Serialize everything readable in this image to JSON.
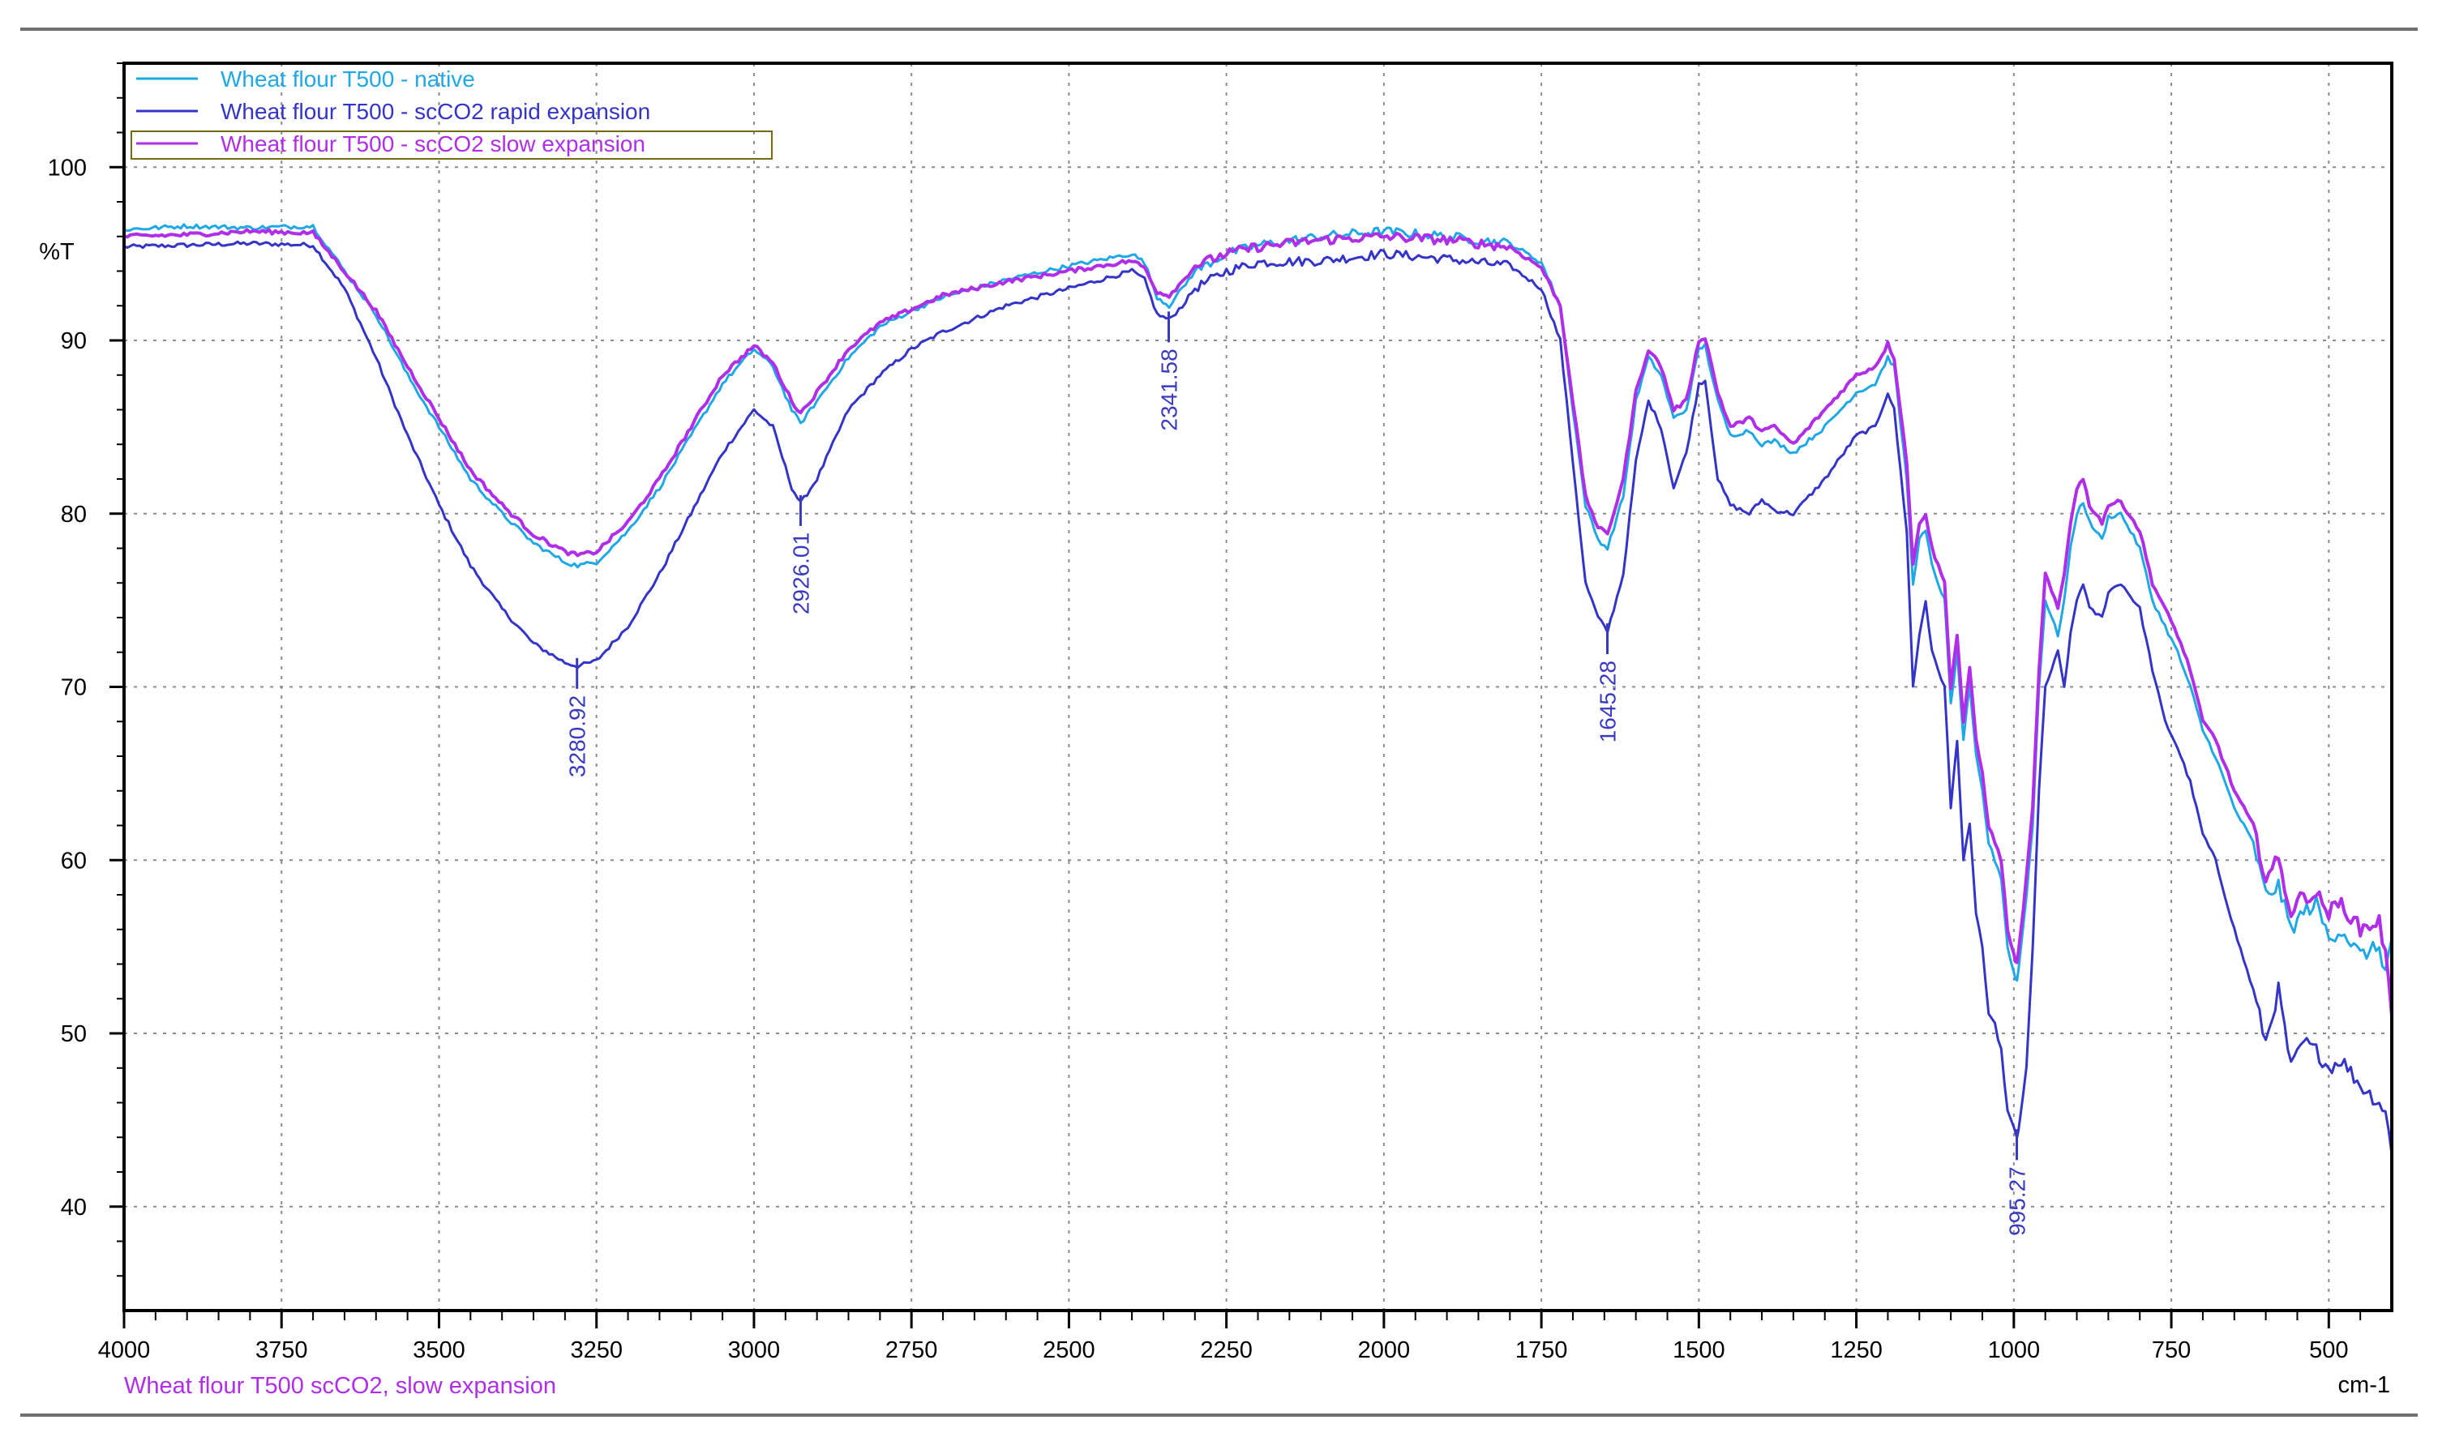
{
  "colors": {
    "native": "#1fa8e6",
    "rapid": "#3434c8",
    "slow": "#b02ee8",
    "grid": "#8c8c8c",
    "peak_label": "#3a3ac0",
    "footer": "#b02ee8",
    "legend_box": "#7a6a10"
  },
  "footer": {
    "sample_name": "Wheat flour T500 scCO2, slow expansion"
  },
  "chart_data": {
    "type": "line",
    "title": "",
    "xlabel": "cm-1",
    "ylabel": "%T",
    "xlim": [
      4000,
      400
    ],
    "ylim": [
      34,
      106
    ],
    "x_reversed": true,
    "grid": true,
    "legend_position": "top-left",
    "xticks": [
      4000,
      3750,
      3500,
      3250,
      3000,
      2750,
      2500,
      2250,
      2000,
      1750,
      1500,
      1250,
      1000,
      750,
      500
    ],
    "xtick_labels": [
      "4000",
      "3750",
      "3500",
      "3250",
      "3000",
      "2750",
      "2500",
      "2250",
      "2000",
      "1750",
      "1500",
      "1250",
      "1000",
      "750",
      "500"
    ],
    "yticks": [
      40,
      50,
      60,
      70,
      80,
      90,
      100
    ],
    "ytick_labels": [
      "40",
      "50",
      "60",
      "70",
      "80",
      "90",
      "100"
    ],
    "series": [
      {
        "key": "native",
        "name": "Wheat flour T500 - native",
        "x": [
          4000,
          3900,
          3800,
          3700,
          3650,
          3600,
          3550,
          3500,
          3450,
          3400,
          3350,
          3300,
          3280,
          3250,
          3200,
          3150,
          3100,
          3050,
          3000,
          2970,
          2940,
          2926,
          2900,
          2850,
          2800,
          2750,
          2700,
          2600,
          2500,
          2400,
          2380,
          2360,
          2341,
          2320,
          2300,
          2250,
          2200,
          2100,
          2000,
          1900,
          1800,
          1750,
          1720,
          1700,
          1680,
          1660,
          1645,
          1620,
          1600,
          1580,
          1560,
          1540,
          1520,
          1500,
          1490,
          1470,
          1450,
          1420,
          1400,
          1380,
          1350,
          1300,
          1250,
          1220,
          1200,
          1190,
          1170,
          1160,
          1150,
          1140,
          1130,
          1110,
          1100,
          1090,
          1080,
          1070,
          1060,
          1050,
          1040,
          1030,
          1020,
          1010,
          1000,
          995,
          990,
          980,
          970,
          960,
          950,
          930,
          920,
          910,
          900,
          890,
          880,
          860,
          850,
          830,
          800,
          780,
          760,
          740,
          720,
          700,
          680,
          650,
          620,
          600,
          580,
          560,
          540,
          520,
          500,
          480,
          450,
          420,
          410,
          400
        ],
        "y": [
          96.4,
          96.6,
          96.5,
          96.6,
          94.0,
          91.5,
          88.0,
          85.0,
          82.0,
          80.0,
          78.3,
          77.2,
          77.0,
          77.2,
          79.0,
          81.5,
          84.5,
          87.5,
          89.5,
          88.5,
          86.0,
          85.2,
          86.5,
          89.0,
          90.8,
          91.7,
          92.5,
          93.5,
          94.3,
          95.0,
          94.5,
          92.5,
          92.0,
          93.0,
          94.0,
          95.0,
          95.5,
          96.0,
          96.3,
          96.0,
          95.6,
          94.5,
          92.0,
          86.0,
          80.5,
          78.5,
          78.0,
          81.0,
          86.5,
          89.0,
          88.0,
          85.5,
          86.0,
          89.5,
          89.7,
          86.5,
          84.5,
          84.8,
          84.0,
          84.2,
          83.5,
          85.0,
          87.0,
          87.5,
          89.0,
          88.5,
          82.0,
          76.0,
          78.5,
          79.0,
          77.0,
          75.0,
          69.0,
          72.0,
          67.0,
          70.0,
          66.0,
          64.0,
          61.0,
          60.0,
          59.0,
          55.0,
          53.5,
          53.0,
          54.5,
          58.0,
          62.0,
          70.0,
          75.0,
          73.0,
          75.0,
          78.0,
          80.0,
          80.7,
          79.5,
          78.5,
          79.8,
          80.0,
          78.0,
          75.0,
          73.5,
          72.0,
          70.0,
          67.5,
          66.0,
          63.0,
          61.0,
          58.0,
          58.5,
          56.0,
          57.0,
          57.5,
          55.5,
          56.0,
          54.5,
          55.0,
          53.5,
          55.5
        ]
      },
      {
        "key": "rapid",
        "name": "Wheat flour T500 - scCO2 rapid expansion",
        "x": [
          4000,
          3900,
          3800,
          3700,
          3650,
          3600,
          3550,
          3500,
          3450,
          3400,
          3350,
          3300,
          3280,
          3250,
          3200,
          3150,
          3100,
          3050,
          3000,
          2970,
          2940,
          2926,
          2900,
          2850,
          2800,
          2750,
          2700,
          2600,
          2500,
          2400,
          2380,
          2360,
          2341,
          2320,
          2300,
          2250,
          2200,
          2100,
          2000,
          1900,
          1800,
          1750,
          1720,
          1700,
          1680,
          1660,
          1645,
          1620,
          1600,
          1580,
          1560,
          1540,
          1520,
          1500,
          1490,
          1470,
          1450,
          1420,
          1400,
          1380,
          1350,
          1300,
          1250,
          1220,
          1200,
          1190,
          1170,
          1160,
          1150,
          1140,
          1130,
          1110,
          1100,
          1090,
          1080,
          1070,
          1060,
          1050,
          1040,
          1030,
          1020,
          1010,
          1000,
          995,
          990,
          980,
          970,
          960,
          950,
          930,
          920,
          910,
          900,
          890,
          880,
          860,
          850,
          830,
          800,
          780,
          760,
          740,
          720,
          700,
          680,
          650,
          620,
          600,
          580,
          560,
          540,
          520,
          500,
          480,
          450,
          420,
          410,
          400
        ],
        "y": [
          95.4,
          95.5,
          95.6,
          95.5,
          93.0,
          89.0,
          84.5,
          80.5,
          77.0,
          74.5,
          72.5,
          71.4,
          71.2,
          71.5,
          73.5,
          76.5,
          80.0,
          83.5,
          86.0,
          85.0,
          81.5,
          80.6,
          82.0,
          86.0,
          88.0,
          89.5,
          90.5,
          92.0,
          93.0,
          94.0,
          93.5,
          91.5,
          91.2,
          92.0,
          93.0,
          94.0,
          94.5,
          94.6,
          95.0,
          94.7,
          94.3,
          93.0,
          90.0,
          83.0,
          76.0,
          74.0,
          73.2,
          76.5,
          83.0,
          86.5,
          85.0,
          81.5,
          83.5,
          87.5,
          87.7,
          82.0,
          80.5,
          80.0,
          80.8,
          80.2,
          80.0,
          82.0,
          84.5,
          85.0,
          87.0,
          86.0,
          79.0,
          70.0,
          73.0,
          75.0,
          72.0,
          70.0,
          63.0,
          67.0,
          60.0,
          62.0,
          57.0,
          55.0,
          51.0,
          50.5,
          49.0,
          45.5,
          44.5,
          44.0,
          45.0,
          48.0,
          55.0,
          64.0,
          70.0,
          72.0,
          70.0,
          73.0,
          75.0,
          76.0,
          74.5,
          74.0,
          75.5,
          76.0,
          74.5,
          71.0,
          68.0,
          66.5,
          64.5,
          61.5,
          60.0,
          56.0,
          52.5,
          49.5,
          52.5,
          48.0,
          49.5,
          49.0,
          48.0,
          48.5,
          47.0,
          46.0,
          45.5,
          43.0
        ]
      },
      {
        "key": "slow",
        "name": "Wheat flour T500 - scCO2 slow expansion",
        "x": [
          4000,
          3900,
          3800,
          3700,
          3650,
          3600,
          3550,
          3500,
          3450,
          3400,
          3350,
          3300,
          3280,
          3250,
          3200,
          3150,
          3100,
          3050,
          3000,
          2970,
          2940,
          2926,
          2900,
          2850,
          2800,
          2750,
          2700,
          2600,
          2500,
          2400,
          2380,
          2360,
          2341,
          2320,
          2300,
          2250,
          2200,
          2100,
          2000,
          1900,
          1800,
          1750,
          1720,
          1700,
          1680,
          1660,
          1645,
          1620,
          1600,
          1580,
          1560,
          1540,
          1520,
          1500,
          1490,
          1470,
          1450,
          1420,
          1400,
          1380,
          1350,
          1300,
          1250,
          1220,
          1200,
          1190,
          1170,
          1160,
          1150,
          1140,
          1130,
          1110,
          1100,
          1090,
          1080,
          1070,
          1060,
          1050,
          1040,
          1030,
          1020,
          1010,
          1000,
          995,
          990,
          980,
          970,
          960,
          950,
          930,
          920,
          910,
          900,
          890,
          880,
          860,
          850,
          830,
          800,
          780,
          760,
          740,
          720,
          700,
          680,
          650,
          620,
          600,
          580,
          560,
          540,
          520,
          500,
          480,
          450,
          420,
          410,
          400
        ],
        "y": [
          96.0,
          96.1,
          96.3,
          96.2,
          94.0,
          91.7,
          88.5,
          85.5,
          82.5,
          80.5,
          78.8,
          77.8,
          77.6,
          77.8,
          79.5,
          82.0,
          85.0,
          88.0,
          89.7,
          88.7,
          86.5,
          85.8,
          87.0,
          89.5,
          91.0,
          91.8,
          92.6,
          93.4,
          94.0,
          94.6,
          94.2,
          92.8,
          92.6,
          93.4,
          94.3,
          95.0,
          95.4,
          95.8,
          96.0,
          95.8,
          95.4,
          94.2,
          92.0,
          86.5,
          81.0,
          79.2,
          78.8,
          82.0,
          87.0,
          89.5,
          88.5,
          86.0,
          86.5,
          90.0,
          90.2,
          87.0,
          85.0,
          85.5,
          84.8,
          85.0,
          84.0,
          86.0,
          88.0,
          88.5,
          89.8,
          89.0,
          83.0,
          77.0,
          79.5,
          80.0,
          78.0,
          76.0,
          70.0,
          73.0,
          68.0,
          71.0,
          67.0,
          65.0,
          62.0,
          61.0,
          60.0,
          56.0,
          54.5,
          54.0,
          55.5,
          59.0,
          63.0,
          71.0,
          76.5,
          74.5,
          76.5,
          79.5,
          81.5,
          82.0,
          80.5,
          79.5,
          80.5,
          80.7,
          79.0,
          76.0,
          74.5,
          73.0,
          71.0,
          68.0,
          67.0,
          64.0,
          62.0,
          59.0,
          60.0,
          57.0,
          58.0,
          58.0,
          57.0,
          57.5,
          56.0,
          56.5,
          54.5,
          51.0
        ]
      }
    ],
    "annotations": [
      {
        "text": "3280.92",
        "x": 3280.92,
        "y": 71.2,
        "series": "rapid"
      },
      {
        "text": "2926.01",
        "x": 2926.01,
        "y": 80.6,
        "series": "rapid"
      },
      {
        "text": "2341.58",
        "x": 2341.58,
        "y": 91.2,
        "series": "rapid"
      },
      {
        "text": "1645.28",
        "x": 1645.28,
        "y": 73.2,
        "series": "rapid"
      },
      {
        "text": "995.27",
        "x": 995.27,
        "y": 44.0,
        "series": "rapid"
      }
    ]
  }
}
